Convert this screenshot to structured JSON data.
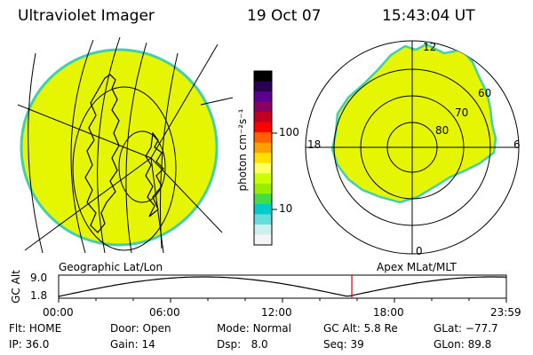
{
  "header": {
    "instrument": "Ultraviolet Imager",
    "date": "19 Oct 07",
    "time": "15:43:04 UT"
  },
  "colorbar": {
    "unit_label": "photon cm⁻²s⁻¹",
    "ticks": [
      "100",
      "10"
    ],
    "colors": [
      "#000000",
      "#2a0050",
      "#5a0090",
      "#8a0060",
      "#c00020",
      "#ff0000",
      "#ff6000",
      "#ffa000",
      "#ffe000",
      "#ffff60",
      "#ccff00",
      "#99ee00",
      "#44dd44",
      "#00cccc",
      "#66dddd",
      "#ccf0f0",
      "#f4f4f4"
    ]
  },
  "left_panel": {
    "label": "Geographic Lat/Lon",
    "fill_color": "#e6f500",
    "edge_color": "#40d0b0"
  },
  "right_panel": {
    "label": "Apex MLat/MLT",
    "mlt_labels": {
      "top": "12",
      "left": "18",
      "right": "6",
      "bottom": "0"
    },
    "lat_labels": [
      "60",
      "70",
      "80"
    ]
  },
  "altitude_plot": {
    "ylabel": "GC Alt",
    "yticks": [
      "9.0",
      "1.8"
    ],
    "xticks": [
      "00:00",
      "06:00",
      "12:00",
      "18:00",
      "23:59"
    ],
    "marker_time": "15:43",
    "marker_color": "#e00000"
  },
  "info": {
    "flt_label": "Flt:",
    "flt_value": "HOME",
    "ip_label": "IP:",
    "ip_value": "36.0",
    "door_label": "Door:",
    "door_value": "Open",
    "gain_label": "Gain:",
    "gain_value": "14",
    "mode_label": "Mode:",
    "mode_value": "Normal",
    "dsp_label": "Dsp:",
    "dsp_value": "8.0",
    "gcalt_label": "GC Alt:",
    "gcalt_value": "5.8 Re",
    "seq_label": "Seq:",
    "seq_value": "39",
    "glat_label": "GLat:",
    "glat_value": "−77.7",
    "glon_label": "GLon:",
    "glon_value": "89.8"
  }
}
